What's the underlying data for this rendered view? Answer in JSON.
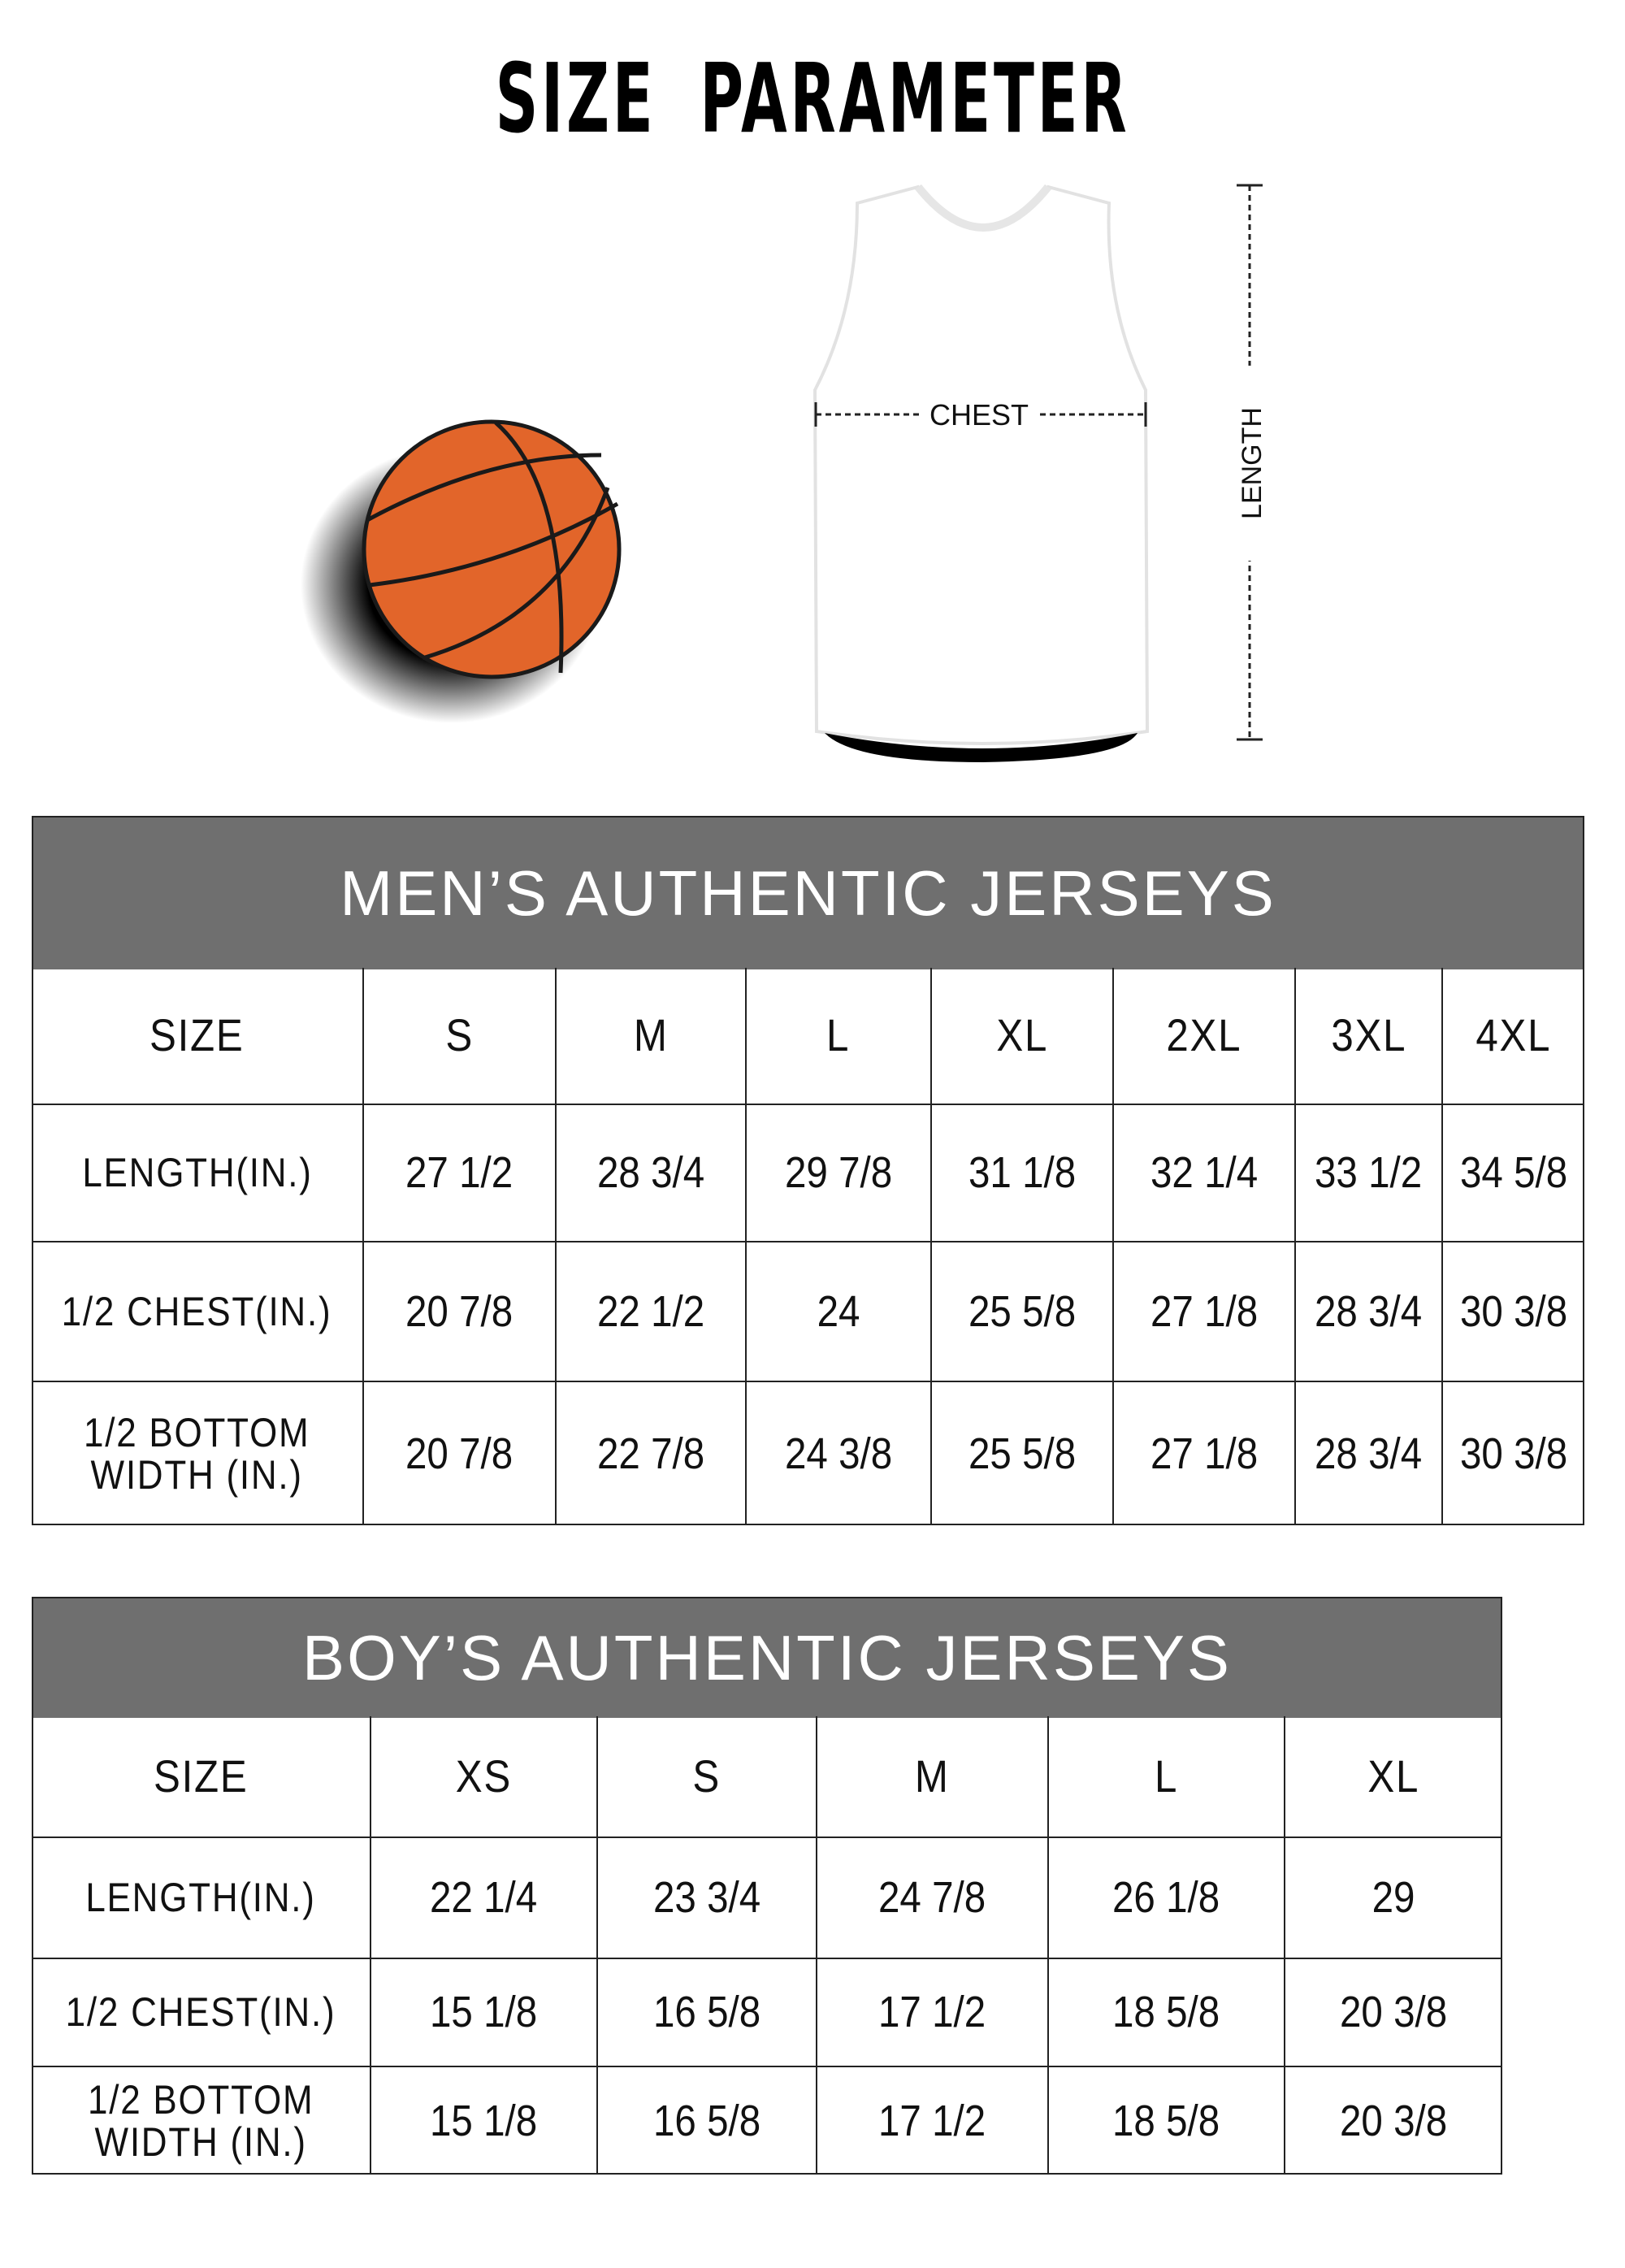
{
  "title": "SIZE PARAMETER",
  "diagram": {
    "chest_label": "CHEST",
    "length_label": "LENGTH",
    "ball_color": "#e2652a",
    "icons": [
      "basketball-icon",
      "jersey-icon"
    ]
  },
  "colors": {
    "header_bg": "#6f6f6f",
    "header_text": "#ffffff",
    "grid": "#222222"
  },
  "mens": {
    "title": "MEN’S AUTHENTIC JERSEYS",
    "header": [
      "SIZE",
      "S",
      "M",
      "L",
      "XL",
      "2XL",
      "3XL",
      "4XL"
    ],
    "rows": [
      [
        "LENGTH(IN.)",
        "27  1/2",
        "28  3/4",
        "29  7/8",
        "31  1/8",
        "32  1/4",
        "33  1/2",
        "34  5/8"
      ],
      [
        "1/2 CHEST(IN.)",
        "20  7/8",
        "22  1/2",
        "24",
        "25  5/8",
        "27  1/8",
        "28  3/4",
        "30  3/8"
      ],
      [
        "1/2 BOTTOM\nWIDTH  (IN.)",
        "20  7/8",
        "22  7/8",
        "24  3/8",
        "25  5/8",
        "27  1/8",
        "28  3/4",
        "30  3/8"
      ]
    ]
  },
  "boys": {
    "title": "BOY’S AUTHENTIC JERSEYS",
    "header": [
      "SIZE",
      "XS",
      "S",
      "M",
      "L",
      "XL"
    ],
    "rows": [
      [
        "LENGTH(IN.)",
        "22  1/4",
        "23  3/4",
        "24  7/8",
        "26  1/8",
        "29"
      ],
      [
        "1/2 CHEST(IN.)",
        "15  1/8",
        "16  5/8",
        "17  1/2",
        "18  5/8",
        "20  3/8"
      ],
      [
        "1/2 BOTTOM\nWIDTH  (IN.)",
        "15  1/8",
        "16  5/8",
        "17  1/2",
        "18  5/8",
        "20  3/8"
      ]
    ]
  }
}
